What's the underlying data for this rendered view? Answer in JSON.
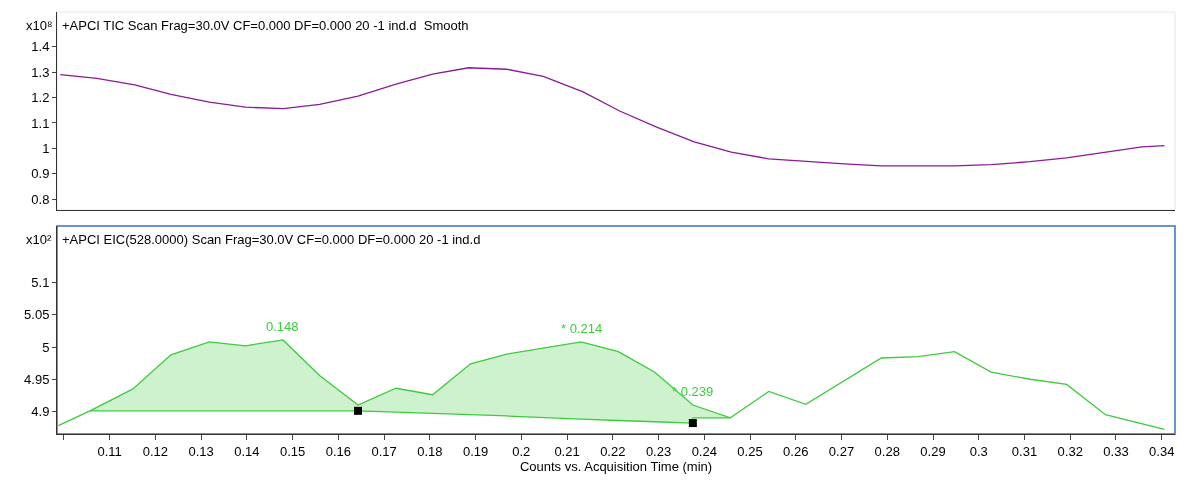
{
  "chart_data": [
    {
      "type": "line",
      "title": "+APCI TIC Scan Frag=30.0V CF=0.000 DF=0.000 20 -1 ind.d  Smooth",
      "ylabel": "x10⁸",
      "tick_labels": "y",
      "xlim": [
        0.0985,
        0.3429
      ],
      "ylim": [
        0.758,
        1.536
      ],
      "yticks": [
        0.8,
        0.9,
        1,
        1.1,
        1.2,
        1.3,
        1.4
      ],
      "grid": false,
      "series": [
        {
          "color": "#8b1a96",
          "x": [
            0.0992,
            0.1072,
            0.1155,
            0.1234,
            0.1318,
            0.1397,
            0.148,
            0.1559,
            0.1643,
            0.1726,
            0.1806,
            0.1885,
            0.1968,
            0.2048,
            0.2135,
            0.2216,
            0.2296,
            0.2378,
            0.2459,
            0.2541,
            0.2706,
            0.2787,
            0.2947,
            0.3027,
            0.3112,
            0.3192,
            0.3357,
            0.3406
          ],
          "values": [
            1.29,
            1.275,
            1.25,
            1.212,
            1.182,
            1.162,
            1.156,
            1.173,
            1.205,
            1.253,
            1.292,
            1.317,
            1.311,
            1.283,
            1.222,
            1.146,
            1.084,
            1.026,
            0.985,
            0.959,
            0.939,
            0.931,
            0.931,
            0.936,
            0.948,
            0.963,
            1.006,
            1.011
          ]
        }
      ]
    },
    {
      "type": "line",
      "title": "+APCI EIC(528.0000) Scan Frag=30.0V CF=0.000 DF=0.000 20 -1 ind.d",
      "ylabel": "x10²",
      "xlabel": "Counts vs. Acquisition Time (min)",
      "xlim": [
        0.0985,
        0.3429
      ],
      "ylim": [
        4.865,
        5.188
      ],
      "yticks": [
        4.9,
        4.95,
        5,
        5.05,
        5.1
      ],
      "xticks": [
        {
          "value": 0.1,
          "label": null
        },
        0.11,
        0.12,
        0.13,
        0.14,
        0.15,
        0.16,
        0.17,
        0.18,
        0.19,
        0.2,
        0.21,
        0.22,
        0.23,
        0.24,
        0.25,
        0.26,
        0.27,
        0.28,
        0.29,
        0.3,
        0.31,
        0.32,
        0.33,
        0.34
      ],
      "grid": false,
      "annotations": [
        {
          "text": "0.148",
          "x": 0.1479,
          "y": 5.011
        },
        {
          "text": "* 0.214",
          "x": 0.2131,
          "y": 5.008
        },
        {
          "text": "* 0.239",
          "x": 0.2375,
          "y": 4.91
        }
      ],
      "series": [
        {
          "type": "line",
          "color": "#3ccc3c",
          "x": [
            0.0988,
            0.1057,
            0.1151,
            0.1234,
            0.1318,
            0.1397,
            0.1479,
            0.1559,
            0.1643,
            0.1726,
            0.1806,
            0.1889,
            0.1968,
            0.2131,
            0.2212,
            0.2292,
            0.2375,
            0.2457,
            0.2541,
            0.2622,
            0.2787,
            0.2867,
            0.2947,
            0.3027,
            0.3112,
            0.3192,
            0.3277,
            0.3406
          ],
          "values": [
            4.878,
            4.901,
            4.935,
            4.988,
            5.008,
            5.002,
            5.011,
            4.956,
            4.91,
            4.936,
            4.926,
            4.974,
            4.989,
            5.008,
            4.993,
            4.961,
            4.91,
            4.89,
            4.931,
            4.911,
            4.983,
            4.985,
            4.993,
            4.961,
            4.95,
            4.942,
            4.895,
            4.872
          ]
        },
        {
          "type": "line",
          "color": "#3ccc3c",
          "x": [
            0.1057,
            0.1151,
            0.1234,
            0.1318,
            0.1397,
            0.1479,
            0.1559,
            0.1643
          ],
          "values": [
            4.901,
            4.901,
            4.901,
            4.901,
            4.901,
            4.901,
            4.901,
            4.901
          ],
          "upper": [
            4.901,
            4.935,
            4.988,
            5.008,
            5.002,
            5.011,
            4.956,
            4.91
          ],
          "lower": [
            4.901,
            4.901,
            4.901,
            4.901,
            4.901,
            4.901,
            4.901,
            4.901
          ]
        },
        {
          "type": "line",
          "color": "#3ccc3c",
          "x": [
            0.1643,
            0.1726,
            0.1806,
            0.1889,
            0.1968,
            0.2131,
            0.2212,
            0.2292,
            0.2375,
            0.2375,
            0.2457
          ],
          "values": [
            4.901,
            4.899,
            4.897,
            4.895,
            4.893,
            4.888,
            4.886,
            4.884,
            4.882,
            4.89,
            4.89
          ],
          "upper": [
            4.91,
            4.936,
            4.926,
            4.974,
            4.989,
            5.008,
            4.993,
            4.961,
            4.91,
            4.91,
            4.89
          ],
          "lower": [
            4.901,
            4.899,
            4.897,
            4.895,
            4.893,
            4.888,
            4.886,
            4.884,
            4.882,
            4.89,
            4.89
          ]
        },
        {
          "type": "scatter",
          "marker": "square",
          "color": "#000000",
          "x": [
            0.1643,
            0.2375
          ],
          "values": [
            4.901,
            4.882
          ]
        }
      ]
    }
  ]
}
